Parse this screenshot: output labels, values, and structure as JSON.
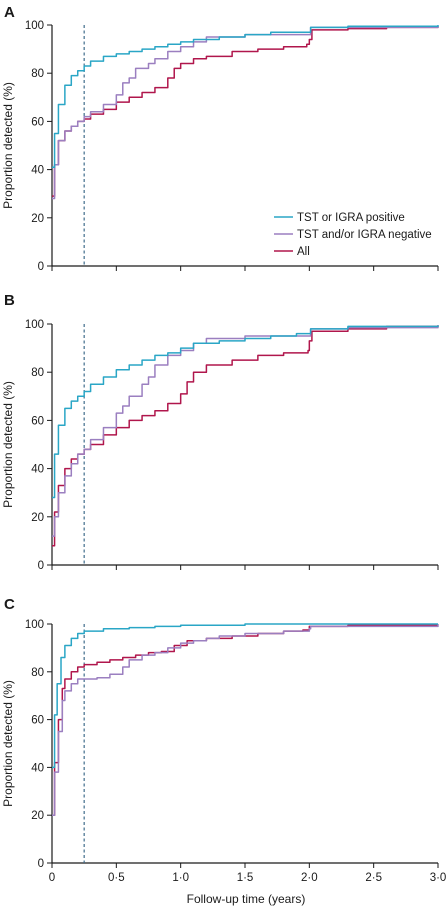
{
  "figure": {
    "xlabel": "Follow-up time (years)",
    "ylabel": "Proportion detected (%)",
    "colors": {
      "tst_positive": "#2aa6c6",
      "tst_negative": "#9b7fc0",
      "all": "#b0164c",
      "reference_line": "#3f6c8c",
      "axis": "#1a1a1a"
    }
  },
  "chart_data": [
    {
      "panel": "A",
      "type": "line",
      "xlim": [
        0,
        3
      ],
      "ylim": [
        0,
        100
      ],
      "xticks": [
        "0",
        "0·5",
        "1·0",
        "1·5",
        "2·0",
        "2·5",
        "3·0"
      ],
      "yticks": [
        "0",
        "20",
        "40",
        "60",
        "80",
        "100"
      ],
      "reference_line_x": 0.25,
      "legend_position": "lower-right",
      "series": [
        {
          "name": "TST or IGRA positive",
          "key": "tst_positive",
          "points": [
            [
              0,
              41
            ],
            [
              0.02,
              55
            ],
            [
              0.05,
              67
            ],
            [
              0.1,
              75
            ],
            [
              0.15,
              79
            ],
            [
              0.2,
              81
            ],
            [
              0.25,
              83
            ],
            [
              0.3,
              85
            ],
            [
              0.4,
              87
            ],
            [
              0.5,
              88
            ],
            [
              0.6,
              89
            ],
            [
              0.7,
              90
            ],
            [
              0.8,
              91
            ],
            [
              0.9,
              92
            ],
            [
              1.0,
              93
            ],
            [
              1.1,
              94
            ],
            [
              1.3,
              95
            ],
            [
              1.5,
              96
            ],
            [
              1.7,
              97
            ],
            [
              2.0,
              97
            ],
            [
              2.01,
              99
            ],
            [
              2.3,
              99.5
            ],
            [
              3.0,
              100
            ]
          ]
        },
        {
          "name": "TST and/or IGRA negative",
          "key": "tst_negative",
          "points": [
            [
              0,
              28
            ],
            [
              0.02,
              42
            ],
            [
              0.05,
              52
            ],
            [
              0.1,
              56
            ],
            [
              0.15,
              58
            ],
            [
              0.2,
              60
            ],
            [
              0.25,
              62
            ],
            [
              0.3,
              64
            ],
            [
              0.4,
              67
            ],
            [
              0.5,
              71
            ],
            [
              0.55,
              76
            ],
            [
              0.6,
              78
            ],
            [
              0.65,
              82
            ],
            [
              0.75,
              84
            ],
            [
              0.8,
              86
            ],
            [
              0.9,
              89
            ],
            [
              1.0,
              91
            ],
            [
              1.1,
              93
            ],
            [
              1.2,
              95
            ],
            [
              1.5,
              96
            ],
            [
              1.8,
              96
            ],
            [
              2.0,
              96
            ],
            [
              2.01,
              99
            ],
            [
              2.3,
              99
            ],
            [
              3.0,
              99.5
            ]
          ]
        },
        {
          "name": "All",
          "key": "all",
          "points": [
            [
              0,
              29
            ],
            [
              0.02,
              42
            ],
            [
              0.05,
              52
            ],
            [
              0.1,
              56
            ],
            [
              0.15,
              58
            ],
            [
              0.2,
              60
            ],
            [
              0.25,
              61
            ],
            [
              0.3,
              63
            ],
            [
              0.4,
              65
            ],
            [
              0.5,
              68
            ],
            [
              0.6,
              70
            ],
            [
              0.7,
              72
            ],
            [
              0.8,
              74
            ],
            [
              0.9,
              78
            ],
            [
              0.95,
              82
            ],
            [
              1.0,
              84
            ],
            [
              1.1,
              86
            ],
            [
              1.2,
              87
            ],
            [
              1.4,
              89
            ],
            [
              1.6,
              90
            ],
            [
              1.8,
              91
            ],
            [
              1.98,
              92
            ],
            [
              2.0,
              94
            ],
            [
              2.02,
              98
            ],
            [
              2.3,
              98.5
            ],
            [
              2.6,
              99
            ],
            [
              3.0,
              99.5
            ]
          ]
        }
      ]
    },
    {
      "panel": "B",
      "type": "line",
      "xlim": [
        0,
        3
      ],
      "ylim": [
        0,
        100
      ],
      "xticks": [
        "0",
        "0·5",
        "1·0",
        "1·5",
        "2·0",
        "2·5",
        "3·0"
      ],
      "yticks": [
        "0",
        "20",
        "40",
        "60",
        "80",
        "100"
      ],
      "reference_line_x": 0.25,
      "series": [
        {
          "key": "tst_positive",
          "points": [
            [
              0,
              28
            ],
            [
              0.02,
              46
            ],
            [
              0.05,
              58
            ],
            [
              0.1,
              65
            ],
            [
              0.15,
              68
            ],
            [
              0.2,
              70
            ],
            [
              0.25,
              72
            ],
            [
              0.3,
              75
            ],
            [
              0.4,
              78
            ],
            [
              0.5,
              81
            ],
            [
              0.6,
              83
            ],
            [
              0.7,
              85
            ],
            [
              0.8,
              87
            ],
            [
              0.9,
              88
            ],
            [
              1.0,
              90
            ],
            [
              1.1,
              92
            ],
            [
              1.3,
              93
            ],
            [
              1.5,
              94
            ],
            [
              1.7,
              95
            ],
            [
              1.9,
              96
            ],
            [
              2.0,
              96
            ],
            [
              2.01,
              98
            ],
            [
              2.3,
              99
            ],
            [
              3.0,
              99.5
            ]
          ]
        },
        {
          "key": "tst_negative",
          "points": [
            [
              0,
              12
            ],
            [
              0.02,
              20
            ],
            [
              0.05,
              30
            ],
            [
              0.1,
              37
            ],
            [
              0.15,
              42
            ],
            [
              0.2,
              46
            ],
            [
              0.25,
              48
            ],
            [
              0.3,
              52
            ],
            [
              0.4,
              57
            ],
            [
              0.5,
              63
            ],
            [
              0.55,
              66
            ],
            [
              0.6,
              70
            ],
            [
              0.7,
              75
            ],
            [
              0.75,
              78
            ],
            [
              0.8,
              83
            ],
            [
              0.9,
              87
            ],
            [
              1.0,
              89
            ],
            [
              1.1,
              92
            ],
            [
              1.2,
              94
            ],
            [
              1.5,
              95
            ],
            [
              1.8,
              95
            ],
            [
              2.0,
              95
            ],
            [
              2.01,
              98
            ],
            [
              2.3,
              98.5
            ],
            [
              3.0,
              99
            ]
          ]
        },
        {
          "key": "all",
          "points": [
            [
              0,
              8
            ],
            [
              0.02,
              22
            ],
            [
              0.05,
              33
            ],
            [
              0.1,
              40
            ],
            [
              0.15,
              44
            ],
            [
              0.2,
              46
            ],
            [
              0.25,
              48
            ],
            [
              0.3,
              50
            ],
            [
              0.4,
              54
            ],
            [
              0.5,
              57
            ],
            [
              0.6,
              60
            ],
            [
              0.7,
              62
            ],
            [
              0.8,
              64
            ],
            [
              0.9,
              67
            ],
            [
              1.0,
              71
            ],
            [
              1.05,
              76
            ],
            [
              1.1,
              80
            ],
            [
              1.2,
              83
            ],
            [
              1.4,
              85
            ],
            [
              1.6,
              87
            ],
            [
              1.8,
              88
            ],
            [
              1.99,
              89
            ],
            [
              2.0,
              93
            ],
            [
              2.02,
              97
            ],
            [
              2.3,
              98
            ],
            [
              2.6,
              99
            ],
            [
              3.0,
              99.5
            ]
          ]
        }
      ]
    },
    {
      "panel": "C",
      "type": "line",
      "xlim": [
        0,
        3
      ],
      "ylim": [
        0,
        100
      ],
      "xticks": [
        "0",
        "0·5",
        "1·0",
        "1·5",
        "2·0",
        "2·5",
        "3·0"
      ],
      "yticks": [
        "0",
        "20",
        "40",
        "60",
        "80",
        "100"
      ],
      "reference_line_x": 0.25,
      "series": [
        {
          "key": "tst_positive",
          "points": [
            [
              0,
              40
            ],
            [
              0.02,
              62
            ],
            [
              0.04,
              75
            ],
            [
              0.07,
              86
            ],
            [
              0.1,
              91
            ],
            [
              0.15,
              94
            ],
            [
              0.2,
              96
            ],
            [
              0.25,
              97
            ],
            [
              0.4,
              98
            ],
            [
              0.6,
              98.5
            ],
            [
              0.8,
              99
            ],
            [
              1.0,
              99.5
            ],
            [
              1.5,
              100
            ],
            [
              3.0,
              100
            ]
          ]
        },
        {
          "key": "tst_negative",
          "points": [
            [
              0,
              20
            ],
            [
              0.02,
              38
            ],
            [
              0.05,
              55
            ],
            [
              0.08,
              68
            ],
            [
              0.1,
              72
            ],
            [
              0.15,
              75
            ],
            [
              0.2,
              77
            ],
            [
              0.25,
              77
            ],
            [
              0.35,
              77.5
            ],
            [
              0.45,
              79
            ],
            [
              0.55,
              82
            ],
            [
              0.6,
              85
            ],
            [
              0.7,
              87
            ],
            [
              0.8,
              88
            ],
            [
              0.9,
              90
            ],
            [
              1.0,
              92
            ],
            [
              1.1,
              93
            ],
            [
              1.2,
              94
            ],
            [
              1.3,
              95
            ],
            [
              1.5,
              96
            ],
            [
              1.8,
              97
            ],
            [
              2.0,
              98
            ],
            [
              2.01,
              99
            ],
            [
              3.0,
              100
            ]
          ]
        },
        {
          "key": "all",
          "points": [
            [
              0,
              20
            ],
            [
              0.02,
              42
            ],
            [
              0.05,
              60
            ],
            [
              0.08,
              73
            ],
            [
              0.1,
              77
            ],
            [
              0.15,
              80
            ],
            [
              0.2,
              82
            ],
            [
              0.25,
              83
            ],
            [
              0.35,
              84
            ],
            [
              0.45,
              85
            ],
            [
              0.55,
              86
            ],
            [
              0.65,
              87
            ],
            [
              0.75,
              88
            ],
            [
              0.85,
              88.5
            ],
            [
              0.95,
              91
            ],
            [
              1.05,
              93
            ],
            [
              1.2,
              94
            ],
            [
              1.4,
              95
            ],
            [
              1.6,
              96
            ],
            [
              1.8,
              97
            ],
            [
              1.95,
              97.5
            ],
            [
              2.0,
              99
            ],
            [
              2.3,
              99.5
            ],
            [
              3.0,
              99.5
            ]
          ]
        }
      ]
    }
  ]
}
